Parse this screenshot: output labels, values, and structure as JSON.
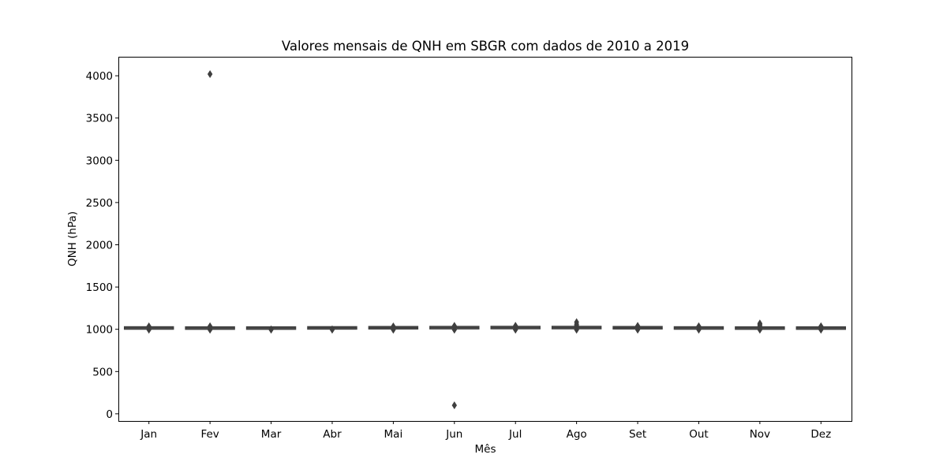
{
  "chart_data": {
    "type": "box",
    "title": "Valores mensais de QNH em SBGR com dados de 2010 a 2019",
    "xlabel": "Mês",
    "ylabel": "QNH (hPa)",
    "ylim": [
      -85,
      4225
    ],
    "yticks": [
      0,
      500,
      1000,
      1500,
      2000,
      2500,
      3000,
      3500,
      4000
    ],
    "grid": false,
    "categories": [
      "Jan",
      "Fev",
      "Mar",
      "Abr",
      "Mai",
      "Jun",
      "Jul",
      "Ago",
      "Set",
      "Out",
      "Nov",
      "Dez"
    ],
    "boxes": [
      {
        "q1": 1014,
        "median": 1017,
        "q3": 1020,
        "whisker_low": 1005,
        "whisker_high": 1029,
        "outliers": [
          995,
          1000,
          1032,
          1035
        ]
      },
      {
        "q1": 1013,
        "median": 1016,
        "q3": 1019,
        "whisker_low": 1004,
        "whisker_high": 1028,
        "outliers": [
          995,
          1000,
          1032,
          1036,
          4020
        ]
      },
      {
        "q1": 1013,
        "median": 1016,
        "q3": 1019,
        "whisker_low": 1004,
        "whisker_high": 1028,
        "outliers": [
          995,
          1000
        ]
      },
      {
        "q1": 1015,
        "median": 1018,
        "q3": 1021,
        "whisker_low": 1006,
        "whisker_high": 1030,
        "outliers": [
          995,
          1000
        ]
      },
      {
        "q1": 1016,
        "median": 1019,
        "q3": 1023,
        "whisker_low": 1006,
        "whisker_high": 1032,
        "outliers": [
          995,
          1000,
          1034
        ]
      },
      {
        "q1": 1017,
        "median": 1021,
        "q3": 1024,
        "whisker_low": 1007,
        "whisker_high": 1034,
        "outliers": [
          995,
          1000,
          1037,
          1040,
          100
        ]
      },
      {
        "q1": 1018,
        "median": 1021,
        "q3": 1025,
        "whisker_low": 1008,
        "whisker_high": 1035,
        "outliers": [
          995,
          1000,
          1038,
          1042
        ]
      },
      {
        "q1": 1017,
        "median": 1021,
        "q3": 1025,
        "whisker_low": 1007,
        "whisker_high": 1035,
        "outliers": [
          995,
          1000,
          1038,
          1045,
          1060,
          1085
        ]
      },
      {
        "q1": 1015,
        "median": 1019,
        "q3": 1023,
        "whisker_low": 1005,
        "whisker_high": 1032,
        "outliers": [
          995,
          1000,
          1035,
          1040
        ]
      },
      {
        "q1": 1013,
        "median": 1017,
        "q3": 1020,
        "whisker_low": 1004,
        "whisker_high": 1029,
        "outliers": [
          995,
          1000,
          1032,
          1036
        ]
      },
      {
        "q1": 1013,
        "median": 1016,
        "q3": 1019,
        "whisker_low": 1003,
        "whisker_high": 1028,
        "outliers": [
          995,
          1000,
          1032,
          1045,
          1060,
          1070
        ]
      },
      {
        "q1": 1013,
        "median": 1016,
        "q3": 1019,
        "whisker_low": 1003,
        "whisker_high": 1028,
        "outliers": [
          995,
          1000,
          1032,
          1036
        ]
      }
    ]
  }
}
